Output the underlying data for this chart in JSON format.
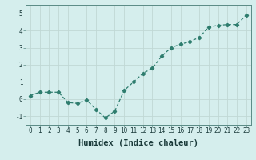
{
  "x": [
    0,
    1,
    2,
    3,
    4,
    5,
    6,
    7,
    8,
    9,
    10,
    11,
    12,
    13,
    14,
    15,
    16,
    17,
    18,
    19,
    20,
    21,
    22,
    23
  ],
  "y": [
    0.2,
    0.4,
    0.4,
    0.4,
    -0.2,
    -0.25,
    -0.05,
    -0.6,
    -1.1,
    -0.7,
    0.5,
    1.0,
    1.5,
    1.8,
    2.5,
    3.0,
    3.2,
    3.35,
    3.6,
    4.2,
    4.3,
    4.35,
    4.35,
    4.9
  ],
  "line_color": "#2e7d6e",
  "marker": "D",
  "marker_size": 2.2,
  "line_width": 0.9,
  "xlabel": "Humidex (Indice chaleur)",
  "xlim": [
    -0.5,
    23.5
  ],
  "ylim": [
    -1.5,
    5.5
  ],
  "yticks": [
    -1,
    0,
    1,
    2,
    3,
    4,
    5
  ],
  "xticks": [
    0,
    1,
    2,
    3,
    4,
    5,
    6,
    7,
    8,
    9,
    10,
    11,
    12,
    13,
    14,
    15,
    16,
    17,
    18,
    19,
    20,
    21,
    22,
    23
  ],
  "bg_color": "#d5eeed",
  "grid_color": "#c0d8d5",
  "tick_fontsize": 5.5,
  "xlabel_fontsize": 7.5
}
